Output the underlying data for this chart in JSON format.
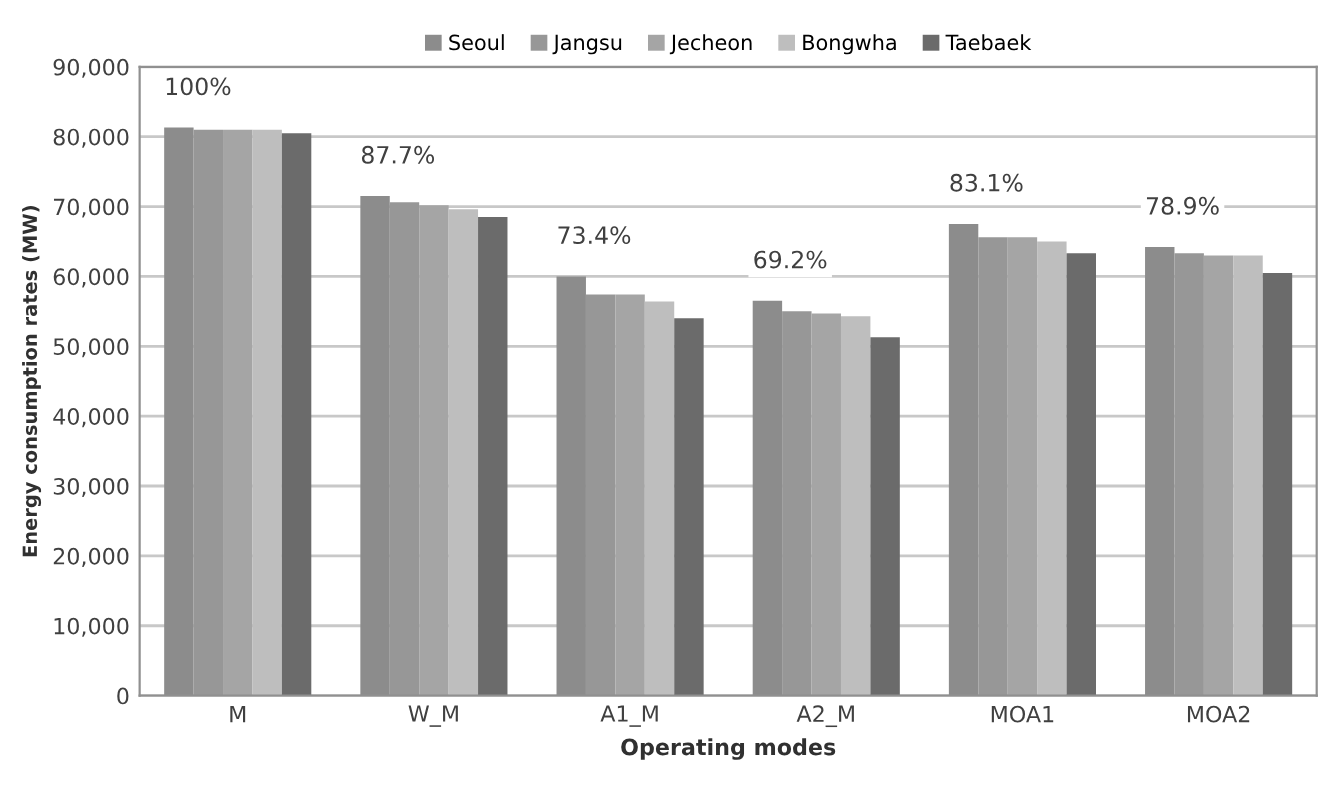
{
  "chart_data": {
    "type": "bar",
    "categories": [
      "M",
      "W_M",
      "A1_M",
      "A2_M",
      "MOA1",
      "MOA2"
    ],
    "series": [
      {
        "name": "Seoul",
        "color": "#8c8c8c",
        "values": [
          81300,
          71500,
          60000,
          56500,
          67500,
          64200
        ]
      },
      {
        "name": "Jangsu",
        "color": "#979797",
        "values": [
          81000,
          70600,
          57400,
          55000,
          65600,
          63300
        ]
      },
      {
        "name": "Jecheon",
        "color": "#a5a5a5",
        "values": [
          81000,
          70200,
          57400,
          54700,
          65600,
          63000
        ]
      },
      {
        "name": "Bongwha",
        "color": "#bebebe",
        "values": [
          81000,
          69600,
          56400,
          54300,
          65000,
          63000
        ]
      },
      {
        "name": "Taebaek",
        "color": "#6b6b6b",
        "values": [
          80500,
          68500,
          54000,
          51300,
          63300,
          60500
        ]
      }
    ],
    "xlabel": "Operating modes",
    "ylabel": "Energy consumption rates (MW)",
    "ylim": [
      0,
      90000
    ],
    "yticks": [
      {
        "value": 0,
        "label": "0"
      },
      {
        "value": 10000,
        "label": "10,000"
      },
      {
        "value": 20000,
        "label": "20,000"
      },
      {
        "value": 30000,
        "label": "30,000"
      },
      {
        "value": 40000,
        "label": "40,000"
      },
      {
        "value": 50000,
        "label": "50,000"
      },
      {
        "value": 60000,
        "label": "60,000"
      },
      {
        "value": 70000,
        "label": "70,000"
      },
      {
        "value": 80000,
        "label": "80,000"
      },
      {
        "value": 90000,
        "label": "90,000"
      }
    ],
    "annotations": [
      "100%",
      "87.7%",
      "73.4%",
      "69.2%",
      "83.1%",
      "78.9%"
    ],
    "grid": "y",
    "legend": "top"
  }
}
